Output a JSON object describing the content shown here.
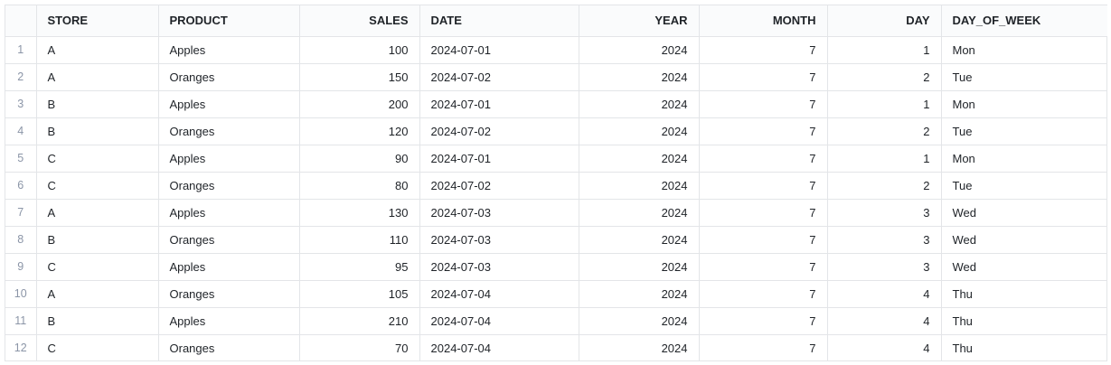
{
  "columns": [
    {
      "key": "STORE",
      "label": "STORE",
      "align": "left"
    },
    {
      "key": "PRODUCT",
      "label": "PRODUCT",
      "align": "left"
    },
    {
      "key": "SALES",
      "label": "SALES",
      "align": "right"
    },
    {
      "key": "DATE",
      "label": "DATE",
      "align": "left"
    },
    {
      "key": "YEAR",
      "label": "YEAR",
      "align": "right"
    },
    {
      "key": "MONTH",
      "label": "MONTH",
      "align": "right"
    },
    {
      "key": "DAY",
      "label": "DAY",
      "align": "right"
    },
    {
      "key": "DAY_OF_WEEK",
      "label": "DAY_OF_WEEK",
      "align": "left"
    }
  ],
  "rows": [
    {
      "n": "1",
      "STORE": "A",
      "PRODUCT": "Apples",
      "SALES": "100",
      "DATE": "2024-07-01",
      "YEAR": "2024",
      "MONTH": "7",
      "DAY": "1",
      "DAY_OF_WEEK": "Mon"
    },
    {
      "n": "2",
      "STORE": "A",
      "PRODUCT": "Oranges",
      "SALES": "150",
      "DATE": "2024-07-02",
      "YEAR": "2024",
      "MONTH": "7",
      "DAY": "2",
      "DAY_OF_WEEK": "Tue"
    },
    {
      "n": "3",
      "STORE": "B",
      "PRODUCT": "Apples",
      "SALES": "200",
      "DATE": "2024-07-01",
      "YEAR": "2024",
      "MONTH": "7",
      "DAY": "1",
      "DAY_OF_WEEK": "Mon"
    },
    {
      "n": "4",
      "STORE": "B",
      "PRODUCT": "Oranges",
      "SALES": "120",
      "DATE": "2024-07-02",
      "YEAR": "2024",
      "MONTH": "7",
      "DAY": "2",
      "DAY_OF_WEEK": "Tue"
    },
    {
      "n": "5",
      "STORE": "C",
      "PRODUCT": "Apples",
      "SALES": "90",
      "DATE": "2024-07-01",
      "YEAR": "2024",
      "MONTH": "7",
      "DAY": "1",
      "DAY_OF_WEEK": "Mon"
    },
    {
      "n": "6",
      "STORE": "C",
      "PRODUCT": "Oranges",
      "SALES": "80",
      "DATE": "2024-07-02",
      "YEAR": "2024",
      "MONTH": "7",
      "DAY": "2",
      "DAY_OF_WEEK": "Tue"
    },
    {
      "n": "7",
      "STORE": "A",
      "PRODUCT": "Apples",
      "SALES": "130",
      "DATE": "2024-07-03",
      "YEAR": "2024",
      "MONTH": "7",
      "DAY": "3",
      "DAY_OF_WEEK": "Wed"
    },
    {
      "n": "8",
      "STORE": "B",
      "PRODUCT": "Oranges",
      "SALES": "110",
      "DATE": "2024-07-03",
      "YEAR": "2024",
      "MONTH": "7",
      "DAY": "3",
      "DAY_OF_WEEK": "Wed"
    },
    {
      "n": "9",
      "STORE": "C",
      "PRODUCT": "Apples",
      "SALES": "95",
      "DATE": "2024-07-03",
      "YEAR": "2024",
      "MONTH": "7",
      "DAY": "3",
      "DAY_OF_WEEK": "Wed"
    },
    {
      "n": "10",
      "STORE": "A",
      "PRODUCT": "Oranges",
      "SALES": "105",
      "DATE": "2024-07-04",
      "YEAR": "2024",
      "MONTH": "7",
      "DAY": "4",
      "DAY_OF_WEEK": "Thu"
    },
    {
      "n": "11",
      "STORE": "B",
      "PRODUCT": "Apples",
      "SALES": "210",
      "DATE": "2024-07-04",
      "YEAR": "2024",
      "MONTH": "7",
      "DAY": "4",
      "DAY_OF_WEEK": "Thu"
    },
    {
      "n": "12",
      "STORE": "C",
      "PRODUCT": "Oranges",
      "SALES": "70",
      "DATE": "2024-07-04",
      "YEAR": "2024",
      "MONTH": "7",
      "DAY": "4",
      "DAY_OF_WEEK": "Thu"
    }
  ],
  "colors": {
    "border": "#e3e5e8",
    "row_number_text": "#8b95a7",
    "header_bg": "#fafbfc",
    "text": "#1f2328"
  }
}
